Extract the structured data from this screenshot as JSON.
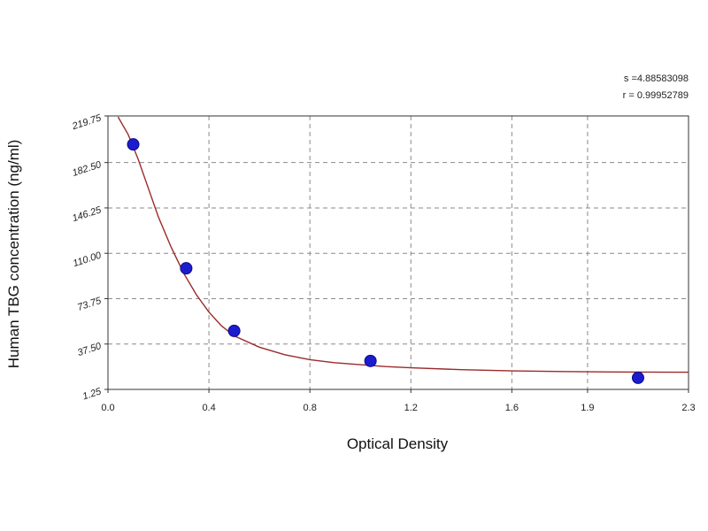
{
  "chart_data": {
    "type": "scatter",
    "title": "",
    "xlabel": "Optical Density",
    "ylabel": "Human TBG concentration (ng/ml)",
    "xlim": [
      0.0,
      2.3
    ],
    "ylim": [
      1.25,
      219.75
    ],
    "x_ticks": [
      0.0,
      0.4,
      0.8,
      1.2,
      1.6,
      1.9,
      2.3
    ],
    "x_tick_labels": [
      "0.0",
      "0.4",
      "0.8",
      "1.2",
      "1.6",
      "1.9",
      "2.3"
    ],
    "y_ticks": [
      1.25,
      37.5,
      73.75,
      110.0,
      146.25,
      182.5,
      219.75
    ],
    "y_tick_labels": [
      "1.25",
      "37.50",
      "73.75",
      "110.00",
      "146.25",
      "182.50",
      "219.75"
    ],
    "grid": true,
    "points": {
      "x": [
        0.1,
        0.31,
        0.5,
        1.04,
        2.1
      ],
      "y": [
        197.0,
        98.0,
        48.0,
        24.0,
        10.5
      ]
    },
    "fit_curve": {
      "x": [
        0.04,
        0.08,
        0.12,
        0.16,
        0.2,
        0.25,
        0.3,
        0.35,
        0.4,
        0.45,
        0.5,
        0.6,
        0.7,
        0.8,
        0.9,
        1.0,
        1.1,
        1.2,
        1.4,
        1.6,
        1.8,
        2.0,
        2.3
      ],
      "y": [
        219.0,
        205.0,
        185.0,
        162.0,
        139.0,
        115.0,
        94.0,
        77.0,
        63.0,
        52.0,
        44.0,
        35.0,
        29.0,
        25.0,
        22.5,
        21.0,
        19.5,
        18.5,
        17.0,
        16.0,
        15.5,
        15.2,
        15.0
      ]
    },
    "point_color": "#1c1ccf",
    "curve_color": "#9b2a2a",
    "stats": {
      "s": "s =4.88583098",
      "r": "r = 0.99952789"
    }
  }
}
